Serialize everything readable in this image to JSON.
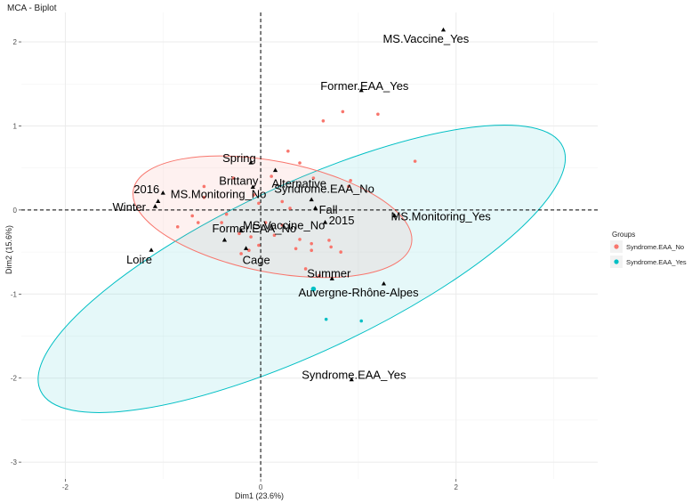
{
  "chart_data": {
    "type": "scatter",
    "title": "MCA - Biplot",
    "xlabel": "Dim1 (23.6%)",
    "ylabel": "Dim2 (15.6%)",
    "xlim": [
      -2.45,
      3.45
    ],
    "ylim": [
      -3.2,
      2.35
    ],
    "xticks": [
      -2,
      0,
      2
    ],
    "yticks": [
      -3,
      -2,
      -1,
      0,
      1,
      2
    ],
    "grid": true,
    "legend": {
      "title": "Groups",
      "position": "right",
      "entries": [
        {
          "name": "Syndrome.EAA_No",
          "color": "#F8766D"
        },
        {
          "name": "Syndrome.EAA_Yes",
          "color": "#00BFC4"
        }
      ]
    },
    "series": [
      {
        "name": "Syndrome.EAA_No",
        "color": "#F8766D",
        "points": [
          [
            0.64,
            1.06
          ],
          [
            0.84,
            1.17
          ],
          [
            1.2,
            1.14
          ],
          [
            1.58,
            0.58
          ],
          [
            0.4,
            0.56
          ],
          [
            0.28,
            0.7
          ],
          [
            0.11,
            0.4
          ],
          [
            0.54,
            0.38
          ],
          [
            0.9,
            0.28
          ],
          [
            0.92,
            0.35
          ],
          [
            -0.58,
            0.28
          ],
          [
            -0.28,
            0.38
          ],
          [
            -0.58,
            0.15
          ],
          [
            -0.07,
            0.18
          ],
          [
            -0.02,
            0.08
          ],
          [
            0.22,
            0.1
          ],
          [
            -0.7,
            -0.07
          ],
          [
            -0.64,
            -0.15
          ],
          [
            -0.85,
            -0.2
          ],
          [
            -0.4,
            -0.15
          ],
          [
            -0.22,
            -0.28
          ],
          [
            -0.1,
            -0.32
          ],
          [
            0.05,
            -0.15
          ],
          [
            0.14,
            -0.3
          ],
          [
            0.22,
            -0.18
          ],
          [
            0.4,
            -0.35
          ],
          [
            0.52,
            -0.4
          ],
          [
            0.52,
            -0.48
          ],
          [
            0.36,
            -0.46
          ],
          [
            0.7,
            -0.36
          ],
          [
            0.72,
            -0.44
          ],
          [
            0.82,
            -0.5
          ],
          [
            -0.12,
            -0.48
          ],
          [
            -0.2,
            -0.52
          ],
          [
            -0.02,
            -0.42
          ],
          [
            0.46,
            -0.7
          ],
          [
            0.6,
            -0.78
          ],
          [
            0.3,
            0.02
          ],
          [
            -0.35,
            -0.05
          ]
        ]
      },
      {
        "name": "Syndrome.EAA_Yes",
        "color": "#00BFC4",
        "points": [
          [
            0.54,
            -0.94
          ],
          [
            0.67,
            -1.3
          ],
          [
            1.03,
            -1.32
          ]
        ]
      }
    ],
    "ellipses": [
      {
        "group": "Syndrome.EAA_No",
        "center": [
          0.12,
          -0.08
        ],
        "semi_axes": [
          1.45,
          0.66
        ],
        "rotation_deg": 11
      },
      {
        "group": "Syndrome.EAA_Yes",
        "center": [
          0.42,
          -0.7
        ],
        "semi_axes": [
          2.95,
          1.0
        ],
        "rotation_deg": -25
      }
    ],
    "variables": [
      {
        "label": "MS.Vaccine_Yes",
        "x": 1.87,
        "y": 2.14
      },
      {
        "label": "Former.EAA_Yes",
        "x": 1.03,
        "y": 1.42
      },
      {
        "label": "Spring",
        "x": -0.1,
        "y": 0.56
      },
      {
        "label": "Alternative",
        "x": 0.15,
        "y": 0.47
      },
      {
        "label": "Brittany",
        "x": -0.08,
        "y": 0.27
      },
      {
        "label": "2016",
        "x": -1.0,
        "y": 0.2
      },
      {
        "label": "Syndrome.EAA_No",
        "x": 0.52,
        "y": 0.12
      },
      {
        "label": "MS.Monitoring_No",
        "x": -1.05,
        "y": 0.1
      },
      {
        "label": "Winter",
        "x": -1.08,
        "y": 0.04
      },
      {
        "label": "Fall",
        "x": 0.56,
        "y": 0.02
      },
      {
        "label": "MS.Monitoring_Yes",
        "x": 1.37,
        "y": -0.07
      },
      {
        "label": "2015",
        "x": 0.66,
        "y": -0.15
      },
      {
        "label": "MS.Vaccine_No",
        "x": -0.2,
        "y": -0.25
      },
      {
        "label": "Former.EAA_No",
        "x": -0.37,
        "y": -0.36
      },
      {
        "label": "Loire",
        "x": -1.12,
        "y": -0.48
      },
      {
        "label": "Cage",
        "x": -0.15,
        "y": -0.46
      },
      {
        "label": "Summer",
        "x": 0.73,
        "y": -0.82
      },
      {
        "label": "Auvergne-Rhône-Alpes",
        "x": 1.26,
        "y": -0.88
      },
      {
        "label": "Syndrome.EAA_Yes",
        "x": 0.93,
        "y": -2.02
      }
    ]
  }
}
